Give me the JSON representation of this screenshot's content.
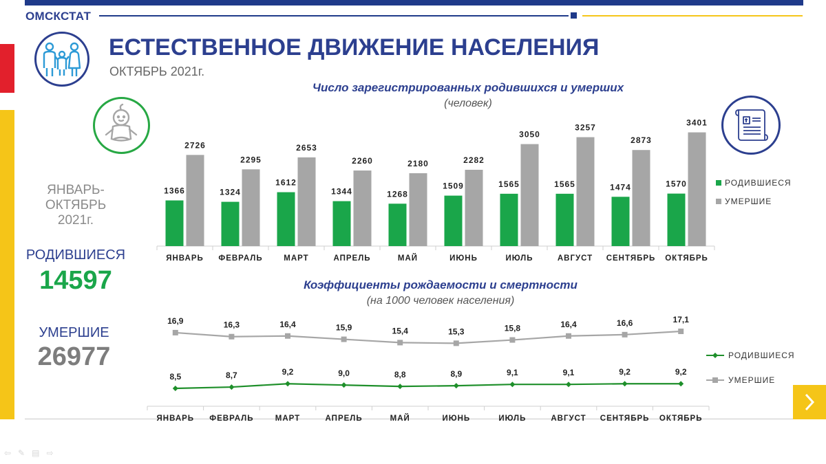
{
  "brand": "ОМСКСТАТ",
  "title": "ЕСТЕСТВЕННОЕ ДВИЖЕНИЕ НАСЕЛЕНИЯ",
  "subtitle": "ОКТЯБРЬ 2021г.",
  "summary": {
    "period_lines": [
      "ЯНВАРЬ-",
      "ОКТЯБРЬ",
      "2021г."
    ],
    "born_label": "РОДИВШИЕСЯ",
    "born_value": "14597",
    "died_label": "УМЕРШИЕ",
    "died_value": "26977"
  },
  "colors": {
    "navy": "#2c3f8f",
    "green_bar": "#1aa64a",
    "gray_bar": "#a6a6a6",
    "green_line": "#1e8f2a",
    "gray_line": "#a6a6a6",
    "yellow": "#f5c518",
    "red": "#e2202c"
  },
  "icons": [
    "family-icon",
    "baby-icon",
    "document-icon",
    "chevron-right-icon"
  ],
  "chart_data": [
    {
      "type": "bar",
      "title": "Число зарегистрированных родившихся и умерших",
      "subtitle": "(человек)",
      "categories": [
        "ЯНВАРЬ",
        "ФЕВРАЛЬ",
        "МАРТ",
        "АПРЕЛЬ",
        "МАЙ",
        "ИЮНЬ",
        "ИЮЛЬ",
        "АВГУСТ",
        "СЕНТЯБРЬ",
        "ОКТЯБРЬ"
      ],
      "series": [
        {
          "name": "РОДИВШИЕСЯ",
          "values": [
            1366,
            1324,
            1612,
            1344,
            1268,
            1509,
            1565,
            1565,
            1474,
            1570
          ]
        },
        {
          "name": "УМЕРШИЕ",
          "values": [
            2726,
            2295,
            2653,
            2260,
            2180,
            2282,
            3050,
            3257,
            2873,
            3401
          ]
        }
      ],
      "ylim": [
        0,
        3700
      ],
      "grid": false,
      "legend": "right"
    },
    {
      "type": "line",
      "title": "Коэффициенты рождаемости и смертности",
      "subtitle": "(на 1000 человек населения)",
      "categories": [
        "ЯНВАРЬ",
        "ФЕВРАЛЬ",
        "МАРТ",
        "АПРЕЛЬ",
        "МАЙ",
        "ИЮНЬ",
        "ИЮЛЬ",
        "АВГУСТ",
        "СЕНТЯБРЬ",
        "ОКТЯБРЬ"
      ],
      "series": [
        {
          "name": "РОДИВШИЕСЯ",
          "values": [
            8.5,
            8.7,
            9.2,
            9.0,
            8.8,
            8.9,
            9.1,
            9.1,
            9.2,
            9.2
          ],
          "labels": [
            "8,5",
            "8,7",
            "9,2",
            "9,0",
            "8,8",
            "8,9",
            "9,1",
            "9,1",
            "9,2",
            "9,2"
          ]
        },
        {
          "name": "УМЕРШИЕ",
          "values": [
            16.9,
            16.3,
            16.4,
            15.9,
            15.4,
            15.3,
            15.8,
            16.4,
            16.6,
            17.1
          ],
          "labels": [
            "16,9",
            "16,3",
            "16,4",
            "15,9",
            "15,4",
            "15,3",
            "15,8",
            "16,4",
            "16,6",
            "17,1"
          ]
        }
      ],
      "grid": false,
      "legend": "right"
    }
  ]
}
